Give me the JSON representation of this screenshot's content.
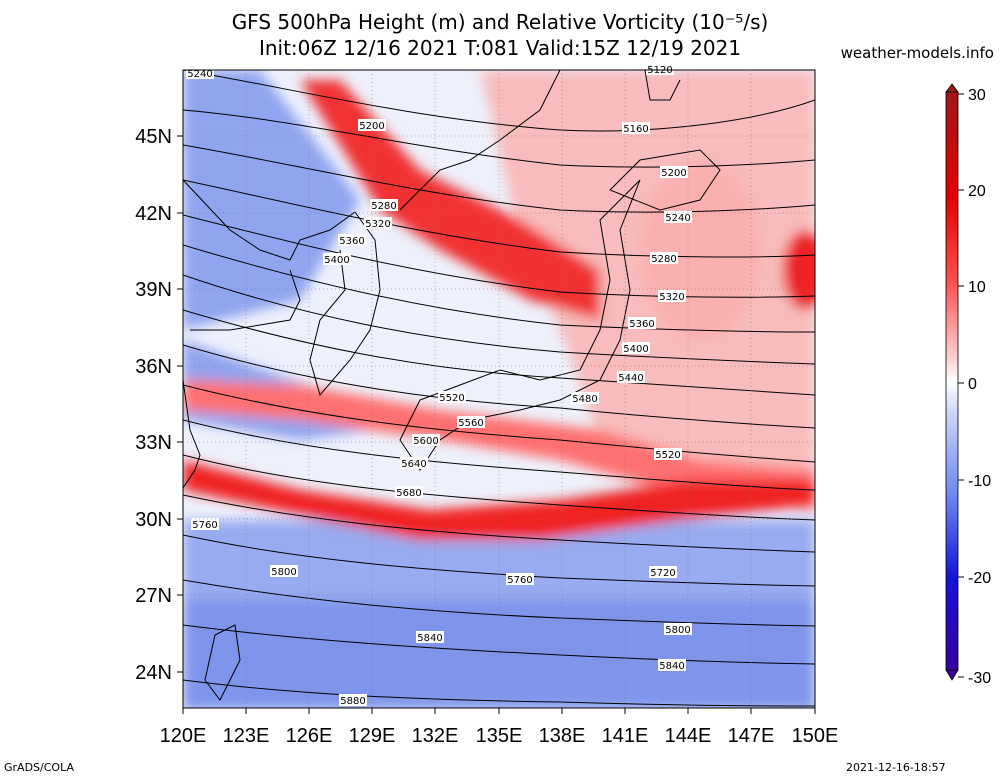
{
  "title": {
    "line1": "GFS 500hPa Height (m) and Relative Vorticity (10⁻⁵/s)",
    "line2": "Init:06Z 12/16 2021 T:081 Valid:15Z 12/19 2021"
  },
  "watermark": "weather-models.info",
  "footer": {
    "left": "GrADS/COLA",
    "right": "2021-12-16-18:57"
  },
  "axes": {
    "lat_labels": [
      "45N",
      "42N",
      "39N",
      "36N",
      "33N",
      "30N",
      "27N",
      "24N"
    ],
    "lon_labels": [
      "120E",
      "123E",
      "126E",
      "129E",
      "132E",
      "135E",
      "138E",
      "141E",
      "144E",
      "147E",
      "150E"
    ]
  },
  "colorbar": {
    "ticks": [
      "30",
      "20",
      "10",
      "0",
      "-10",
      "-20",
      "-30"
    ],
    "range": [
      -30,
      30
    ],
    "colors": [
      "#3a00a0",
      "#1010d0",
      "#2a50f0",
      "#7f9cf5",
      "#c7d2fb",
      "#ffffff",
      "#ffd0d0",
      "#ff8a8a",
      "#ff3030",
      "#e00000",
      "#a01818"
    ]
  },
  "contour_labels": [
    "5240",
    "5200",
    "5160",
    "5120",
    "5200",
    "5280",
    "5320",
    "5360",
    "5400",
    "5240",
    "5280",
    "5320",
    "5360",
    "5400",
    "5440",
    "5480",
    "5520",
    "5560",
    "5520",
    "5600",
    "5640",
    "5680",
    "5760",
    "5800",
    "5760",
    "5720",
    "5800",
    "5840",
    "5840",
    "5880"
  ],
  "map": {
    "ocean_color": "#e8ecfb",
    "land_outline_color": "#000000",
    "height_contour_color": "#000000"
  }
}
